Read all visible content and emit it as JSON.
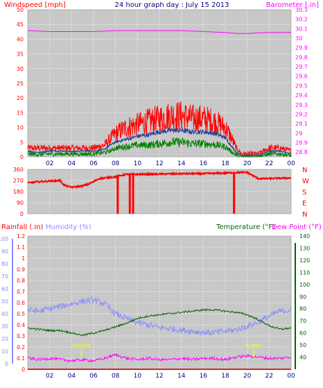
{
  "colors": {
    "bg": "#ffffff",
    "plot_bg": "#c8c8c8",
    "grid": "#ffffff",
    "red": "#ff0000",
    "blue": "#1e3c96",
    "green": "#008000",
    "magenta": "#ff00ff",
    "lavender": "#8c8cff",
    "darkgreen": "#006400",
    "yellow": "#ffff00",
    "navy": "#000080"
  },
  "chart_data": [
    {
      "type": "line",
      "title": "24 hour graph day : July 15 2013",
      "ylabel_left": "Windspeed [mph]",
      "ylabel_right": "Barometer [.in]",
      "xlim": [
        0,
        24
      ],
      "x_ticks": [
        "02",
        "04",
        "06",
        "08",
        "10",
        "12",
        "14",
        "16",
        "18",
        "20",
        "22",
        "00"
      ],
      "ylim_left": [
        0,
        50
      ],
      "y_ticks_left": [
        "0",
        "5",
        "10",
        "15",
        "20",
        "25",
        "30",
        "35",
        "40",
        "45",
        "50"
      ],
      "ylim_right": [
        28.75,
        30.3
      ],
      "y_ticks_right": [
        "28.8",
        "28.9",
        "29",
        "29.1",
        "29.2",
        "29.3",
        "29.4",
        "29.5",
        "29.6",
        "29.7",
        "29.8",
        "29.9",
        "30",
        "30.1",
        "30.2",
        "30.3"
      ],
      "series": [
        {
          "role": "gust",
          "axis": "left",
          "x": [
            0,
            1,
            2,
            3,
            4,
            5,
            6,
            7,
            7.5,
            8,
            9,
            10,
            11,
            12,
            13,
            14,
            15,
            16,
            17,
            18,
            18.5,
            19,
            19.5,
            20,
            21,
            22,
            23,
            24
          ],
          "y": [
            3,
            3,
            3,
            3,
            3,
            3,
            3,
            4,
            6,
            8,
            10,
            11,
            12,
            13,
            14,
            14,
            13,
            13,
            12,
            10,
            7,
            3,
            1,
            1,
            1,
            3,
            3,
            2
          ]
        },
        {
          "role": "average",
          "axis": "left",
          "x": [
            0,
            1,
            2,
            3,
            4,
            5,
            6,
            7,
            7.5,
            8,
            9,
            10,
            11,
            12,
            13,
            14,
            15,
            16,
            17,
            18,
            18.5,
            19,
            19.5,
            20,
            21,
            22,
            23,
            24
          ],
          "y": [
            2,
            1.5,
            2,
            2,
            1.8,
            2,
            2,
            2.5,
            4,
            5,
            6,
            7,
            7.5,
            8.5,
            9,
            9,
            8.5,
            8.5,
            8,
            6.5,
            4,
            1.5,
            0.5,
            0.5,
            0.5,
            2,
            2,
            1
          ]
        },
        {
          "role": "wind",
          "axis": "left",
          "x": [
            0,
            1,
            2,
            3,
            4,
            5,
            6,
            7,
            7.5,
            8,
            9,
            10,
            11,
            12,
            13,
            14,
            15,
            16,
            17,
            18,
            18.5,
            19,
            19.5,
            20,
            21,
            22,
            23,
            24
          ],
          "y": [
            1,
            0.8,
            1,
            1,
            1,
            1,
            1,
            1.5,
            2,
            3,
            3.5,
            4,
            4,
            4.5,
            5,
            5,
            4.5,
            4.5,
            4.2,
            3.5,
            2,
            0.5,
            0,
            0,
            0,
            1,
            1,
            0.5
          ]
        },
        {
          "role": "barometer",
          "axis": "right",
          "x": [
            0,
            2,
            4,
            6,
            8,
            10,
            12,
            14,
            16,
            18,
            19,
            20,
            22,
            24
          ],
          "y": [
            30.08,
            30.07,
            30.07,
            30.07,
            30.08,
            30.08,
            30.08,
            30.08,
            30.07,
            30.06,
            30.05,
            30.05,
            30.06,
            30.06
          ]
        }
      ]
    },
    {
      "type": "line",
      "xlim": [
        0,
        24
      ],
      "ylim": [
        0,
        360
      ],
      "y_ticks": [
        "0",
        "90",
        "180",
        "270",
        "360"
      ],
      "compass_labels": [
        "N",
        "W",
        "S",
        "E",
        "N"
      ],
      "series": [
        {
          "role": "direction",
          "x": [
            0,
            1,
            2,
            3,
            3.2,
            3.5,
            4,
            5,
            5.5,
            6,
            6.5,
            7,
            7.5,
            8,
            8.5,
            9,
            10,
            12,
            14,
            16,
            18,
            19,
            20,
            20.5,
            21,
            22,
            23,
            24
          ],
          "y": [
            250,
            260,
            265,
            270,
            240,
            225,
            215,
            225,
            240,
            260,
            285,
            290,
            295,
            300,
            310,
            320,
            320,
            322,
            325,
            325,
            330,
            335,
            335,
            310,
            285,
            285,
            288,
            290
          ]
        }
      ],
      "drops_to_zero_at": [
        8.2,
        9.3,
        9.6,
        18.8
      ]
    },
    {
      "type": "line",
      "ylabel_left_1": "Rainfall (.in)",
      "ylabel_left_2": "Humidity (%)",
      "ylabel_right_1": "Temperature (°F)",
      "ylabel_right_2": "Dew Point (°F)",
      "xlim": [
        0,
        24
      ],
      "x_ticks": [
        "02",
        "04",
        "06",
        "08",
        "10",
        "12",
        "14",
        "16",
        "18",
        "20",
        "22",
        "00"
      ],
      "ylim_left": [
        0,
        1.2
      ],
      "y_ticks_rain": [
        "0",
        "0.1",
        "0.2",
        "0.3",
        "0.4",
        "0.5",
        "0.6",
        "0.7",
        "0.8",
        "0.9",
        "1",
        "1.1",
        "1.2"
      ],
      "y_ticks_humidity": [
        "0",
        "10",
        "20",
        "30",
        "40",
        "50",
        "60",
        "70",
        "80",
        "90",
        "100"
      ],
      "ylim_right": [
        30,
        140
      ],
      "y_ticks_right": [
        "40",
        "50",
        "60",
        "70",
        "80",
        "90",
        "100",
        "110",
        "120",
        "130",
        "140"
      ],
      "annotations": [
        {
          "text": "Sunrise",
          "x": 4.9
        },
        {
          "text": "Sunset",
          "x": 20.6
        }
      ],
      "series": [
        {
          "role": "humidity",
          "axis": "humidity",
          "x": [
            0,
            1,
            2,
            3,
            4,
            5,
            6,
            7,
            8,
            9,
            10,
            11,
            12,
            13,
            14,
            15,
            16,
            17,
            18,
            19,
            20,
            21,
            22,
            23,
            24
          ],
          "y": [
            43,
            42,
            44,
            46,
            48,
            50,
            51,
            48,
            40,
            36,
            33,
            31,
            29,
            28,
            27,
            26,
            25,
            25,
            26,
            27,
            30,
            33,
            38,
            42,
            43
          ]
        },
        {
          "role": "temperature",
          "axis": "right",
          "x": [
            0,
            1,
            2,
            3,
            4,
            5,
            6,
            7,
            8,
            9,
            10,
            11,
            12,
            13,
            14,
            15,
            16,
            17,
            18,
            19,
            20,
            21,
            22,
            23,
            24
          ],
          "y": [
            64,
            63,
            62,
            62,
            60,
            58,
            60,
            62,
            65,
            68,
            72,
            74,
            75,
            76,
            77,
            78,
            79,
            79,
            78,
            77,
            75,
            71,
            66,
            63,
            64
          ]
        },
        {
          "role": "dewpoint",
          "axis": "right",
          "x": [
            0,
            1,
            2,
            3,
            4,
            5,
            6,
            7,
            8,
            9,
            10,
            11,
            12,
            13,
            14,
            15,
            16,
            17,
            18,
            19,
            20,
            21,
            22,
            23,
            24
          ],
          "y": [
            39,
            38,
            39,
            38,
            37,
            38,
            37,
            39,
            42,
            39,
            38,
            39,
            38,
            38,
            39,
            38,
            39,
            39,
            38,
            40,
            41,
            40,
            39,
            39,
            40
          ]
        },
        {
          "role": "rainfall",
          "axis": "left",
          "x": [
            0,
            24
          ],
          "y": [
            0,
            0
          ]
        }
      ]
    }
  ]
}
